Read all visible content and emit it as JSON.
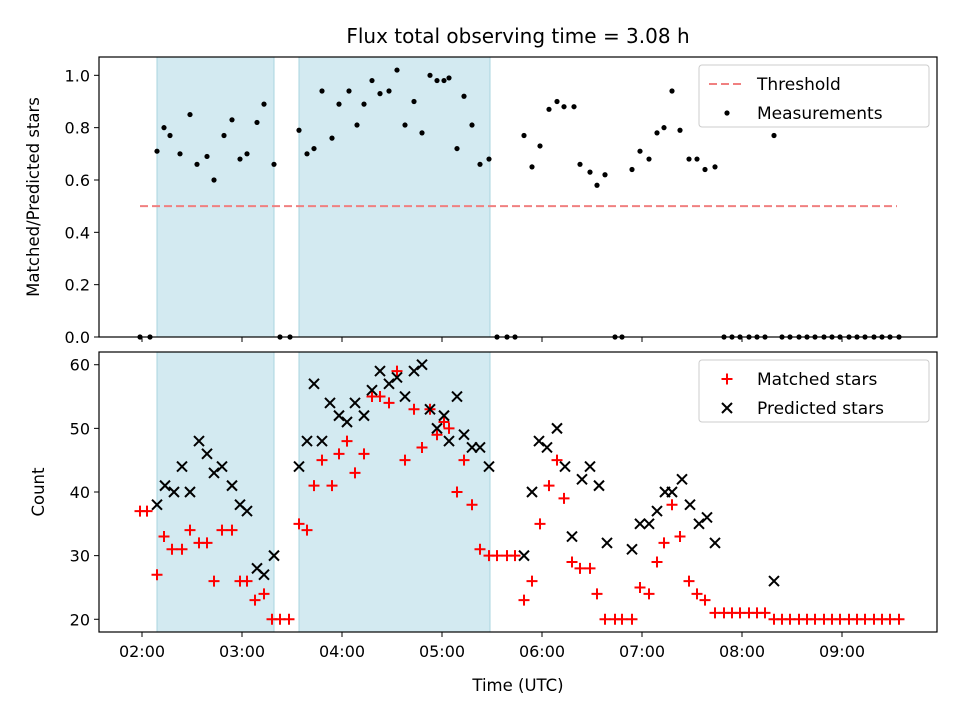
{
  "chart_data": {
    "title": "Flux total observing time = 3.08 h",
    "xlabel": "Time (UTC)",
    "x_unit": "hours UTC",
    "xlim": [
      1.57,
      9.95
    ],
    "xticks": [
      {
        "value": 2.0,
        "label": "02:00"
      },
      {
        "value": 3.0,
        "label": "03:00"
      },
      {
        "value": 4.0,
        "label": "04:00"
      },
      {
        "value": 5.0,
        "label": "05:00"
      },
      {
        "value": 6.0,
        "label": "06:00"
      },
      {
        "value": 7.0,
        "label": "07:00"
      },
      {
        "value": 8.0,
        "label": "08:00"
      },
      {
        "value": 9.0,
        "label": "09:00"
      }
    ],
    "shaded_intervals": [
      [
        2.15,
        3.32
      ],
      [
        3.57,
        5.48
      ]
    ],
    "shade_color": "#d3eaf1",
    "panels": [
      {
        "type": "scatter",
        "ylabel": "Matched/Predicted stars",
        "ylim": [
          0.0,
          1.07
        ],
        "yticks": [
          0.0,
          0.2,
          0.4,
          0.6,
          0.8,
          1.0
        ],
        "ytick_labels": [
          "0.0",
          "0.2",
          "0.4",
          "0.6",
          "0.8",
          "1.0"
        ],
        "threshold": {
          "name": "Threshold",
          "y": 0.5,
          "x": [
            1.98,
            9.55
          ],
          "color": "#f08080"
        },
        "legend": {
          "placement": "top-right",
          "entries": [
            "Threshold",
            "Measurements"
          ]
        },
        "series": [
          {
            "name": "Measurements",
            "marker": "dot",
            "color": "#000000",
            "x": [
              1.98,
              2.08,
              2.15,
              2.22,
              2.28,
              2.38,
              2.48,
              2.55,
              2.65,
              2.72,
              2.82,
              2.9,
              2.98,
              3.05,
              3.15,
              3.22,
              3.32,
              3.38,
              3.48,
              3.57,
              3.65,
              3.72,
              3.8,
              3.9,
              3.97,
              4.07,
              4.15,
              4.22,
              4.3,
              4.38,
              4.47,
              4.55,
              4.63,
              4.72,
              4.8,
              4.88,
              4.95,
              5.02,
              5.07,
              5.15,
              5.22,
              5.3,
              5.38,
              5.47,
              5.55,
              5.65,
              5.73,
              5.82,
              5.9,
              5.98,
              6.07,
              6.15,
              6.22,
              6.32,
              6.38,
              6.48,
              6.55,
              6.63,
              6.73,
              6.8,
              6.9,
              6.98,
              7.07,
              7.15,
              7.22,
              7.3,
              7.38,
              7.47,
              7.55,
              7.63,
              7.73,
              7.82,
              7.9,
              7.98,
              8.07,
              8.15,
              8.23,
              8.32,
              8.4,
              8.48,
              8.57,
              8.65,
              8.73,
              8.82,
              8.9,
              8.98,
              9.07,
              9.15,
              9.23,
              9.32,
              9.4,
              9.48,
              9.57
            ],
            "y": [
              0.0,
              0.0,
              0.71,
              0.8,
              0.77,
              0.7,
              0.85,
              0.66,
              0.69,
              0.6,
              0.77,
              0.83,
              0.68,
              0.7,
              0.82,
              0.89,
              0.66,
              0.0,
              0.0,
              0.79,
              0.7,
              0.72,
              0.94,
              0.76,
              0.89,
              0.94,
              0.81,
              0.89,
              0.98,
              0.93,
              0.94,
              1.02,
              0.81,
              0.9,
              0.78,
              1.0,
              0.98,
              0.98,
              0.99,
              0.72,
              0.92,
              0.81,
              0.66,
              0.68,
              0.0,
              0.0,
              0.0,
              0.77,
              0.65,
              0.73,
              0.87,
              0.9,
              0.88,
              0.88,
              0.66,
              0.63,
              0.58,
              0.62,
              0.0,
              0.0,
              0.64,
              0.71,
              0.68,
              0.78,
              0.8,
              0.94,
              0.79,
              0.68,
              0.68,
              0.64,
              0.65,
              0.0,
              0.0,
              0.0,
              0.0,
              0.0,
              0.0,
              0.77,
              0.0,
              0.0,
              0.0,
              0.0,
              0.0,
              0.0,
              0.0,
              0.0,
              0.0,
              0.0,
              0.0,
              0.0,
              0.0,
              0.0,
              0.0
            ]
          }
        ]
      },
      {
        "type": "scatter",
        "ylabel": "Count",
        "ylim": [
          18.0,
          62.0
        ],
        "yticks": [
          20,
          30,
          40,
          50,
          60
        ],
        "ytick_labels": [
          "20",
          "30",
          "40",
          "50",
          "60"
        ],
        "legend": {
          "placement": "top-right",
          "entries": [
            "Matched stars",
            "Predicted stars"
          ]
        },
        "series": [
          {
            "name": "Matched stars",
            "marker": "plus",
            "color": "#ff0000",
            "x": [
              1.98,
              2.05,
              2.15,
              2.22,
              2.3,
              2.4,
              2.48,
              2.57,
              2.65,
              2.72,
              2.8,
              2.9,
              2.98,
              3.05,
              3.13,
              3.22,
              3.3,
              3.38,
              3.47,
              3.57,
              3.65,
              3.72,
              3.8,
              3.9,
              3.97,
              4.05,
              4.13,
              4.22,
              4.3,
              4.38,
              4.47,
              4.55,
              4.63,
              4.72,
              4.8,
              4.88,
              4.95,
              5.02,
              5.07,
              5.15,
              5.22,
              5.3,
              5.38,
              5.47,
              5.55,
              5.65,
              5.73,
              5.82,
              5.9,
              5.98,
              6.07,
              6.15,
              6.22,
              6.3,
              6.38,
              6.48,
              6.55,
              6.63,
              6.73,
              6.8,
              6.9,
              6.98,
              7.07,
              7.15,
              7.22,
              7.3,
              7.38,
              7.47,
              7.55,
              7.63,
              7.73,
              7.82,
              7.9,
              7.98,
              8.07,
              8.15,
              8.23,
              8.32,
              8.4,
              8.48,
              8.57,
              8.65,
              8.73,
              8.82,
              8.9,
              8.98,
              9.07,
              9.15,
              9.23,
              9.32,
              9.4,
              9.48,
              9.57
            ],
            "y": [
              37,
              37,
              27,
              33,
              31,
              31,
              34,
              32,
              32,
              26,
              34,
              34,
              26,
              26,
              23,
              24,
              20,
              20,
              20,
              35,
              34,
              41,
              45,
              41,
              46,
              48,
              43,
              46,
              55,
              55,
              54,
              59,
              45,
              53,
              47,
              53,
              49,
              51,
              50,
              40,
              45,
              38,
              31,
              30,
              30,
              30,
              30,
              23,
              26,
              35,
              41,
              45,
              39,
              29,
              28,
              28,
              24,
              20,
              20,
              20,
              20,
              25,
              24,
              29,
              32,
              38,
              33,
              26,
              24,
              23,
              21,
              21,
              21,
              21,
              21,
              21,
              21,
              20,
              20,
              20,
              20,
              20,
              20,
              20,
              20,
              20,
              20,
              20,
              20,
              20,
              20,
              20,
              20
            ]
          },
          {
            "name": "Predicted stars",
            "marker": "x",
            "color": "#000000",
            "x": [
              2.15,
              2.23,
              2.32,
              2.4,
              2.48,
              2.57,
              2.65,
              2.72,
              2.8,
              2.9,
              2.98,
              3.05,
              3.15,
              3.22,
              3.32,
              3.57,
              3.65,
              3.72,
              3.8,
              3.88,
              3.97,
              4.05,
              4.13,
              4.22,
              4.3,
              4.38,
              4.47,
              4.55,
              4.63,
              4.72,
              4.8,
              4.88,
              4.95,
              5.02,
              5.07,
              5.15,
              5.22,
              5.3,
              5.38,
              5.47,
              5.82,
              5.9,
              5.97,
              6.05,
              6.15,
              6.23,
              6.3,
              6.4,
              6.48,
              6.57,
              6.65,
              6.9,
              6.98,
              7.07,
              7.15,
              7.23,
              7.3,
              7.4,
              7.48,
              7.57,
              7.65,
              7.73,
              8.32
            ],
            "y": [
              38,
              41,
              40,
              44,
              40,
              48,
              46,
              43,
              44,
              41,
              38,
              37,
              28,
              27,
              30,
              44,
              48,
              57,
              48,
              54,
              52,
              51,
              54,
              52,
              56,
              59,
              57,
              58,
              55,
              59,
              60,
              53,
              50,
              52,
              48,
              55,
              49,
              47,
              47,
              44,
              30,
              40,
              48,
              47,
              50,
              44,
              33,
              42,
              44,
              41,
              32,
              31,
              35,
              35,
              37,
              40,
              40,
              42,
              38,
              35,
              36,
              32,
              26
            ]
          }
        ]
      }
    ]
  }
}
